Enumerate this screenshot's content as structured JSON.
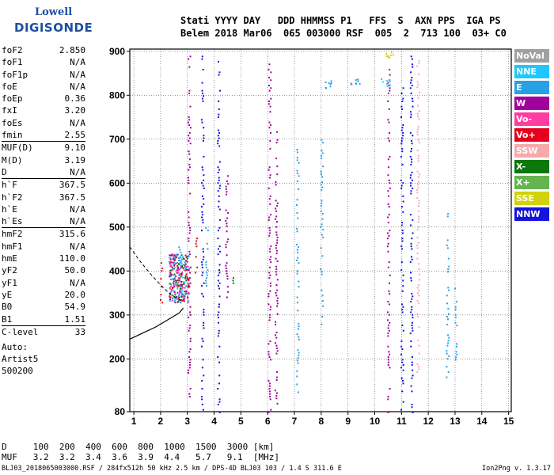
{
  "logo": {
    "top": "Lowell",
    "bottom": "DIGISONDE"
  },
  "header": {
    "line1": "Stati YYYY DAY   DDD HHMMSS P1   FFS  S  AXN PPS  IGA PS",
    "line2": "Belem 2018 Mar06  065 003000 RSF  005  2  713 100  03+ C0"
  },
  "params": [
    {
      "label": "foF2",
      "value": "2.850"
    },
    {
      "label": "foF1",
      "value": "N/A"
    },
    {
      "label": "foF1p",
      "value": "N/A"
    },
    {
      "label": "foE",
      "value": "N/A"
    },
    {
      "label": "foEp",
      "value": "0.36"
    },
    {
      "label": "fxI",
      "value": "3.20"
    },
    {
      "label": "foEs",
      "value": "N/A"
    },
    {
      "label": "fmin",
      "value": "2.55"
    },
    {
      "label": "MUF(D)",
      "value": "9.10",
      "sep": true
    },
    {
      "label": "M(D)",
      "value": "3.19"
    },
    {
      "label": "D",
      "value": "N/A"
    },
    {
      "label": "h`F",
      "value": "367.5",
      "sep": true
    },
    {
      "label": "h`F2",
      "value": "367.5"
    },
    {
      "label": "h`E",
      "value": "N/A"
    },
    {
      "label": "h`Es",
      "value": "N/A"
    },
    {
      "label": "hmF2",
      "value": "315.6",
      "sep": true
    },
    {
      "label": "hmF1",
      "value": "N/A"
    },
    {
      "label": "hmE",
      "value": "110.0"
    },
    {
      "label": "yF2",
      "value": "50.0"
    },
    {
      "label": "yF1",
      "value": "N/A"
    },
    {
      "label": "yE",
      "value": "20.0"
    },
    {
      "label": "B0",
      "value": "54.9"
    },
    {
      "label": "B1",
      "value": "1.51"
    },
    {
      "label": "C-level",
      "value": "33",
      "sep": true
    }
  ],
  "auto": {
    "line1": "Auto:",
    "line2": "Artist5",
    "line3": "500200"
  },
  "legend": [
    {
      "label": "NoVal",
      "color": "#a0a0a0"
    },
    {
      "label": "NNE",
      "color": "#1ec8ff"
    },
    {
      "label": "E",
      "color": "#28a0e6"
    },
    {
      "label": "W",
      "color": "#a0009b"
    },
    {
      "label": "Vo-",
      "color": "#ff3ca0"
    },
    {
      "label": "Vo+",
      "color": "#e6001e"
    },
    {
      "label": "SSW",
      "color": "#f5aaaa"
    },
    {
      "label": "X-",
      "color": "#0a780a"
    },
    {
      "label": "X+",
      "color": "#64b450"
    },
    {
      "label": "SSE",
      "color": "#d2d20a"
    },
    {
      "label": "NNW",
      "color": "#1414dc"
    }
  ],
  "bottom": {
    "row1": "D     100  200  400  600  800  1000  1500  3000 [km]",
    "row2": "MUF   3.2  3.2  3.4  3.6  3.9  4.4   5.7   9.1  [MHz]"
  },
  "footer": {
    "left": "BLJ03_2018065003000.RSF / 284fx512h 50 kHz 2.5 km / DPS-4D BLJ03 103 / 1.4 S 311.6 E",
    "right": "Ion2Png v. 1.3.17"
  },
  "chart_data": {
    "type": "scatter",
    "x_ticks": [
      1,
      2,
      3,
      4,
      5,
      6,
      7,
      8,
      9,
      10,
      11,
      12,
      13,
      14,
      15
    ],
    "y_ticks": [
      80,
      200,
      300,
      400,
      500,
      600,
      700,
      800,
      900
    ],
    "xlim": [
      0.85,
      15.1
    ],
    "ylim": [
      80,
      905
    ],
    "grid": true,
    "legend_position": "right",
    "traces": [
      {
        "x": 2.0,
        "y_range": [
          330,
          420
        ],
        "color": "#e6001e"
      },
      {
        "x": 2.5,
        "y_range": [
          330,
          440
        ],
        "color": "#a0009b"
      },
      {
        "x": 2.7,
        "y_range": [
          330,
          460
        ],
        "color": "#28a0e6"
      },
      {
        "x": 3.05,
        "y_range": [
          110,
          900
        ],
        "color": "#a0009b"
      },
      {
        "x": 3.3,
        "y_range": [
          380,
          480
        ],
        "color": "#e6001e"
      },
      {
        "x": 3.55,
        "y_range": [
          80,
          890
        ],
        "color": "#1414dc"
      },
      {
        "x": 3.7,
        "y_range": [
          350,
          500
        ],
        "color": "#28a0e6"
      },
      {
        "x": 4.15,
        "y_range": [
          80,
          880
        ],
        "color": "#1414dc"
      },
      {
        "x": 4.45,
        "y_range": [
          330,
          620
        ],
        "color": "#a0009b"
      },
      {
        "x": 4.7,
        "y_range": [
          350,
          420
        ],
        "color": "#0a780a"
      },
      {
        "x": 6.05,
        "y_range": [
          80,
          900
        ],
        "color": "#a0009b"
      },
      {
        "x": 6.3,
        "y_range": [
          100,
          720
        ],
        "color": "#a0009b"
      },
      {
        "x": 7.1,
        "y_range": [
          120,
          680
        ],
        "color": "#28a0e6"
      },
      {
        "x": 8.0,
        "y_range": [
          280,
          700
        ],
        "color": "#28a0e6"
      },
      {
        "x": 10.5,
        "y_range": [
          80,
          880
        ],
        "color": "#a0009b"
      },
      {
        "x": 11.0,
        "y_range": [
          80,
          820
        ],
        "color": "#1414dc"
      },
      {
        "x": 11.35,
        "y_range": [
          80,
          900
        ],
        "color": "#1414dc"
      },
      {
        "x": 11.6,
        "y_range": [
          160,
          880
        ],
        "color": "#f5aaaa"
      },
      {
        "x": 12.7,
        "y_range": [
          160,
          540
        ],
        "color": "#28a0e6"
      },
      {
        "x": 13.0,
        "y_range": [
          200,
          400
        ],
        "color": "#28a0e6"
      }
    ],
    "clusters": [
      {
        "x": 8.2,
        "y": 825,
        "color": "#28a0e6"
      },
      {
        "x": 9.25,
        "y": 835,
        "color": "#28a0e6"
      },
      {
        "x": 10.4,
        "y": 830,
        "color": "#1ec8ff"
      },
      {
        "x": 10.55,
        "y": 890,
        "color": "#d2d20a"
      }
    ],
    "profile_curve": [
      {
        "x": 0.85,
        "y": 245
      },
      {
        "x": 1.3,
        "y": 258
      },
      {
        "x": 1.8,
        "y": 272
      },
      {
        "x": 2.3,
        "y": 290
      },
      {
        "x": 2.7,
        "y": 305
      },
      {
        "x": 2.85,
        "y": 315.6
      }
    ],
    "profile_dashed": [
      {
        "x": 0.85,
        "y": 455
      },
      {
        "x": 1.2,
        "y": 425
      },
      {
        "x": 1.6,
        "y": 395
      },
      {
        "x": 2.0,
        "y": 368
      },
      {
        "x": 2.4,
        "y": 345
      },
      {
        "x": 2.85,
        "y": 330
      }
    ]
  }
}
